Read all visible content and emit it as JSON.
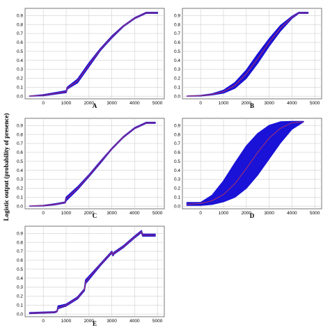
{
  "figure": {
    "ylabel": "Logistic output (probability of presence)"
  },
  "colors": {
    "band": "#1a12d6",
    "mean": "#c0365a",
    "grid": "#cfcfcf",
    "axis": "#555555"
  },
  "chart_data": [
    {
      "id": "A",
      "type": "line",
      "label": "A",
      "xlim": [
        -800,
        5300
      ],
      "ylim": [
        -0.03,
        0.98
      ],
      "xticks": [
        0,
        1000,
        2000,
        3000,
        4000,
        5000
      ],
      "yticks": [
        0.0,
        0.1,
        0.2,
        0.3,
        0.4,
        0.5,
        0.6,
        0.7,
        0.8,
        0.9
      ],
      "grid": true,
      "series": [
        {
          "x": [
            -600,
            0,
            1000,
            1050,
            1500,
            2000,
            2500,
            3000,
            3500,
            4000,
            4500,
            5000
          ],
          "mean": [
            0.0,
            0.01,
            0.05,
            0.09,
            0.17,
            0.35,
            0.52,
            0.66,
            0.78,
            0.87,
            0.93,
            0.93
          ],
          "lower": [
            0.0,
            0.005,
            0.04,
            0.08,
            0.15,
            0.33,
            0.51,
            0.65,
            0.775,
            0.865,
            0.925,
            0.925
          ],
          "upper": [
            0.0,
            0.015,
            0.06,
            0.1,
            0.19,
            0.37,
            0.53,
            0.67,
            0.785,
            0.875,
            0.935,
            0.935
          ]
        }
      ]
    },
    {
      "id": "B",
      "type": "line",
      "label": "B",
      "xlim": [
        -800,
        5300
      ],
      "ylim": [
        -0.03,
        0.98
      ],
      "xticks": [
        0,
        1000,
        2000,
        3000,
        4000,
        5000
      ],
      "yticks": [
        0.0,
        0.1,
        0.2,
        0.3,
        0.4,
        0.5,
        0.6,
        0.7,
        0.8,
        0.9
      ],
      "grid": true,
      "series": [
        {
          "x": [
            -600,
            0,
            500,
            1000,
            1500,
            2000,
            2500,
            3000,
            3500,
            4000,
            4300,
            4700
          ],
          "mean": [
            0.0,
            0.005,
            0.02,
            0.05,
            0.12,
            0.25,
            0.42,
            0.6,
            0.76,
            0.88,
            0.93,
            0.93
          ],
          "lower": [
            0.0,
            0.003,
            0.015,
            0.035,
            0.09,
            0.2,
            0.37,
            0.56,
            0.73,
            0.87,
            0.925,
            0.925
          ],
          "upper": [
            0.0,
            0.007,
            0.025,
            0.065,
            0.15,
            0.29,
            0.47,
            0.64,
            0.79,
            0.89,
            0.935,
            0.935
          ]
        }
      ]
    },
    {
      "id": "C",
      "type": "line",
      "label": "C",
      "xlim": [
        -800,
        5300
      ],
      "ylim": [
        -0.03,
        0.98
      ],
      "xticks": [
        0,
        1000,
        2000,
        3000,
        4000,
        5000
      ],
      "yticks": [
        0.0,
        0.1,
        0.2,
        0.3,
        0.4,
        0.5,
        0.6,
        0.7,
        0.8,
        0.9
      ],
      "grid": true,
      "series": [
        {
          "x": [
            -600,
            0,
            500,
            950,
            1000,
            1500,
            2000,
            2500,
            3000,
            3500,
            4000,
            4500,
            4900
          ],
          "mean": [
            0.0,
            0.005,
            0.02,
            0.04,
            0.08,
            0.2,
            0.34,
            0.49,
            0.64,
            0.77,
            0.87,
            0.93,
            0.93
          ],
          "lower": [
            0.0,
            0.003,
            0.015,
            0.035,
            0.06,
            0.185,
            0.33,
            0.48,
            0.635,
            0.765,
            0.865,
            0.925,
            0.925
          ],
          "upper": [
            0.0,
            0.007,
            0.025,
            0.045,
            0.1,
            0.215,
            0.35,
            0.5,
            0.645,
            0.775,
            0.875,
            0.935,
            0.935
          ]
        }
      ]
    },
    {
      "id": "D",
      "type": "line",
      "label": "D",
      "xlim": [
        -800,
        5300
      ],
      "ylim": [
        -0.03,
        0.98
      ],
      "xticks": [
        0,
        1000,
        2000,
        3000,
        4000,
        5000
      ],
      "yticks": [
        0.0,
        0.1,
        0.2,
        0.3,
        0.4,
        0.5,
        0.6,
        0.7,
        0.8,
        0.9
      ],
      "grid": true,
      "series": [
        {
          "x": [
            -600,
            0,
            500,
            1000,
            1500,
            2000,
            2500,
            3000,
            3500,
            4000,
            4500
          ],
          "mean": [
            0.02,
            0.03,
            0.06,
            0.13,
            0.25,
            0.42,
            0.6,
            0.76,
            0.87,
            0.93,
            0.94
          ],
          "lower": [
            0.01,
            0.01,
            0.02,
            0.05,
            0.1,
            0.2,
            0.35,
            0.53,
            0.71,
            0.86,
            0.94
          ],
          "upper": [
            0.04,
            0.04,
            0.12,
            0.28,
            0.48,
            0.67,
            0.81,
            0.9,
            0.94,
            0.945,
            0.945
          ]
        }
      ]
    },
    {
      "id": "E",
      "type": "line",
      "label": "E",
      "xlim": [
        -800,
        5300
      ],
      "ylim": [
        -0.03,
        0.98
      ],
      "xticks": [
        0,
        1000,
        2000,
        3000,
        4000,
        5000
      ],
      "yticks": [
        0.0,
        0.1,
        0.2,
        0.3,
        0.4,
        0.5,
        0.6,
        0.7,
        0.8,
        0.9
      ],
      "grid": true,
      "series": [
        {
          "x": [
            -600,
            500,
            600,
            650,
            1000,
            1500,
            1800,
            1850,
            2500,
            3000,
            3050,
            3100,
            3500,
            4000,
            4300,
            4350,
            4900
          ],
          "mean": [
            0.01,
            0.02,
            0.03,
            0.07,
            0.1,
            0.18,
            0.27,
            0.36,
            0.55,
            0.69,
            0.66,
            0.68,
            0.75,
            0.86,
            0.92,
            0.88,
            0.88
          ],
          "lower": [
            0.005,
            0.015,
            0.025,
            0.06,
            0.09,
            0.17,
            0.26,
            0.34,
            0.54,
            0.68,
            0.65,
            0.67,
            0.74,
            0.85,
            0.91,
            0.87,
            0.87
          ],
          "upper": [
            0.015,
            0.025,
            0.035,
            0.09,
            0.11,
            0.19,
            0.28,
            0.38,
            0.56,
            0.7,
            0.67,
            0.69,
            0.76,
            0.87,
            0.93,
            0.89,
            0.89
          ]
        }
      ]
    }
  ]
}
